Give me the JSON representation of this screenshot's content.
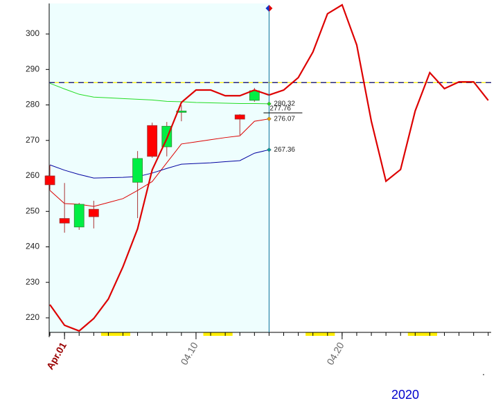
{
  "chart_data": {
    "type": "candlestick",
    "xlim": [
      -0.05,
      30.2
    ],
    "ylim": [
      215.9,
      308.6
    ],
    "yticks": [
      220,
      230,
      240,
      250,
      260,
      270,
      280,
      290,
      300
    ],
    "xticks": [
      {
        "value": 1,
        "label": "Apr.01"
      },
      {
        "value": 10,
        "label": "04.10"
      },
      {
        "value": 20,
        "label": "04.20"
      }
    ],
    "year": "2020",
    "cursor_x": 15,
    "weekend_days": [
      4,
      11,
      18,
      25
    ],
    "reference_line": 286.3,
    "candles": {
      "x": [
        0,
        1,
        2,
        3,
        6,
        7,
        8,
        9,
        13,
        14
      ],
      "open": [
        260,
        248,
        245.6,
        250.6,
        258.2,
        274.2,
        268.2,
        277.9,
        277.2,
        281.3
      ],
      "high": [
        263,
        258,
        252.4,
        253,
        267,
        275,
        275.2,
        279.9,
        277.4,
        284.8
      ],
      "low": [
        256,
        244,
        244.8,
        245.2,
        248.1,
        265.1,
        265.5,
        275.4,
        271.5,
        280.9
      ],
      "close": [
        257.5,
        246.7,
        252,
        248.5,
        264.9,
        265.5,
        274,
        278.3,
        276,
        284
      ],
      "up_color": "#00ee44",
      "down_color": "#ff0000"
    },
    "lines": [
      {
        "color": "#dd0000",
        "width": 2.2,
        "x": [
          0,
          1,
          2,
          3,
          4,
          5,
          6,
          7,
          8,
          9,
          10,
          11,
          12,
          13,
          14,
          15,
          16,
          17,
          18,
          19,
          20,
          21,
          22,
          23,
          24,
          25,
          26,
          27,
          28,
          29,
          30
        ],
        "values": [
          223.7,
          217.9,
          216.3,
          219.8,
          225.3,
          234.4,
          245.1,
          261.7,
          270.5,
          280.7,
          284.2,
          284.2,
          282.6,
          282.6,
          284.2,
          282.8,
          284.2,
          287.7,
          294.9,
          305.7,
          308.2,
          296.9,
          275.4,
          258.5,
          261.8,
          278.3,
          289.1,
          284.6,
          286.5,
          286.5,
          281.3
        ]
      },
      {
        "color": "#22dd22",
        "width": 1,
        "end_label": "280.32",
        "dot": "#22dd22",
        "x": [
          0,
          1,
          2,
          3,
          4,
          5,
          6,
          7,
          8,
          9,
          10,
          11,
          12,
          13,
          14,
          15
        ],
        "values": [
          286.1,
          284.5,
          283.0,
          282.2,
          282.0,
          281.8,
          281.6,
          281.4,
          281.0,
          280.9,
          280.7,
          280.6,
          280.5,
          280.4,
          280.4,
          280.32
        ]
      },
      {
        "color": "#dd0000",
        "width": 1,
        "end_label": "276.07",
        "dot": "#e0a000",
        "x": [
          0,
          1,
          2,
          3,
          4,
          5,
          6,
          7,
          8,
          9,
          10,
          11,
          12,
          13,
          14,
          15
        ],
        "values": [
          255.9,
          252.2,
          252.0,
          251.4,
          252.5,
          253.6,
          255.9,
          258.4,
          263.7,
          269.0,
          269.6,
          270.2,
          270.8,
          271.3,
          275.4,
          276.07
        ]
      },
      {
        "color": "#0000a0",
        "width": 1,
        "end_label": "267.36",
        "dot": "#009999",
        "x": [
          0,
          1,
          2,
          3,
          4,
          5,
          6,
          7,
          8,
          9,
          10,
          11,
          12,
          13,
          14,
          15
        ],
        "values": [
          263.1,
          261.6,
          260.4,
          259.4,
          259.5,
          259.6,
          259.8,
          260.8,
          262.1,
          263.3,
          263.5,
          263.7,
          264.0,
          264.3,
          266.4,
          267.36
        ]
      }
    ],
    "price_marker": {
      "value": 277.76,
      "label": "277.76"
    }
  }
}
